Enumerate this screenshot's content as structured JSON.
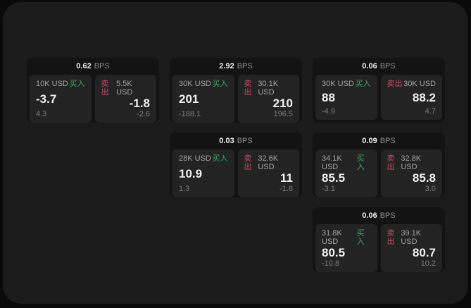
{
  "labels": {
    "bps": "BPS",
    "buy": "买入",
    "sell": "卖出"
  },
  "colors": {
    "background": "#0a0a0b",
    "surface": "#1b1b1c",
    "card": "#131314",
    "panel": "#232324",
    "buy_accent": "#3ea56a",
    "sell_accent": "#cb4a66"
  },
  "cards": [
    {
      "bps": "0.62",
      "buy": {
        "amount": "10K USD",
        "price": "-3.7",
        "change": "4.3"
      },
      "sell": {
        "amount": "5.5K USD",
        "price": "-1.8",
        "change": "-2.6"
      }
    },
    {
      "bps": "2.92",
      "buy": {
        "amount": "30K USD",
        "price": "201",
        "change": "-188.1"
      },
      "sell": {
        "amount": "30.1K USD",
        "price": "210",
        "change": "196.5"
      }
    },
    {
      "bps": "0.06",
      "buy": {
        "amount": "30K USD",
        "price": "88",
        "change": "-4.9"
      },
      "sell": {
        "amount": "30K USD",
        "price": "88.2",
        "change": "4.7"
      }
    },
    {
      "bps": "0.03",
      "buy": {
        "amount": "28K USD",
        "price": "10.9",
        "change": "1.3"
      },
      "sell": {
        "amount": "32.6K USD",
        "price": "11",
        "change": "-1.8"
      }
    },
    {
      "bps": "0.09",
      "buy": {
        "amount": "34.1K USD",
        "price": "85.5",
        "change": "-3.1"
      },
      "sell": {
        "amount": "32.8K USD",
        "price": "85.8",
        "change": "3.0"
      }
    },
    {
      "bps": "0.06",
      "buy": {
        "amount": "31.8K USD",
        "price": "80.5",
        "change": "-10.8"
      },
      "sell": {
        "amount": "39.1K USD",
        "price": "80.7",
        "change": "10.2"
      }
    }
  ]
}
